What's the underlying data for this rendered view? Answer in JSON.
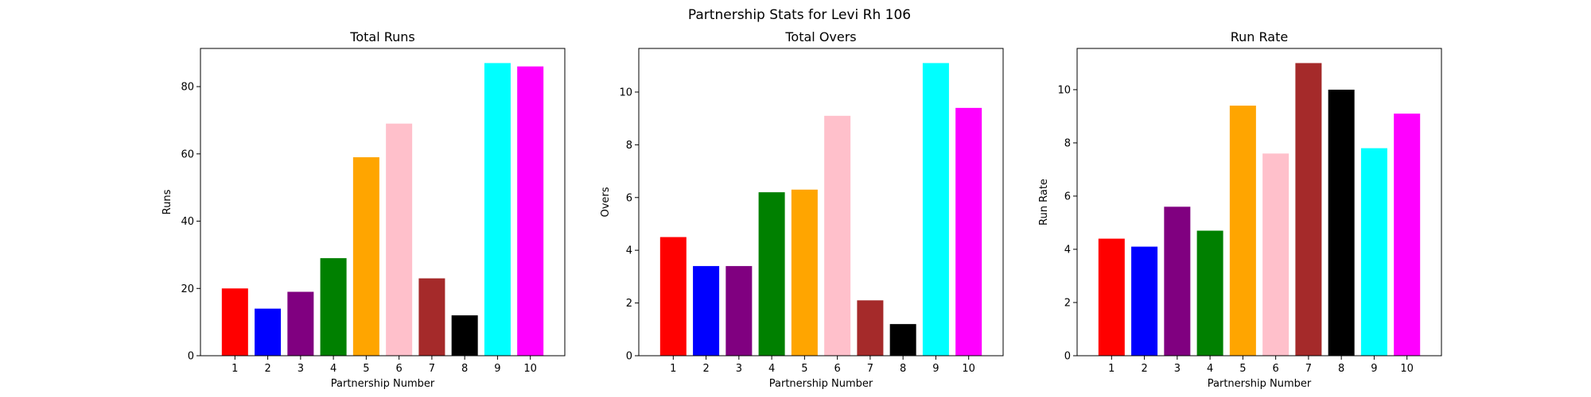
{
  "figure_title": "Partnership Stats for Levi Rh 106",
  "chart_data": [
    {
      "type": "bar",
      "title": "Total Runs",
      "xlabel": "Partnership Number",
      "ylabel": "Runs",
      "categories": [
        "1",
        "2",
        "3",
        "4",
        "5",
        "6",
        "7",
        "8",
        "9",
        "10"
      ],
      "values": [
        20,
        14,
        19,
        29,
        59,
        69,
        23,
        12,
        87,
        86
      ],
      "colors": [
        "#ff0000",
        "#0000ff",
        "#800080",
        "#008000",
        "#ffa500",
        "#ffc0cb",
        "#a52a2a",
        "#000000",
        "#00ffff",
        "#ff00ff"
      ],
      "ylim": [
        0,
        91.35
      ],
      "yticks": [
        0,
        20,
        40,
        60,
        80
      ],
      "grid": false
    },
    {
      "type": "bar",
      "title": "Total Overs",
      "xlabel": "Partnership Number",
      "ylabel": "Overs",
      "categories": [
        "1",
        "2",
        "3",
        "4",
        "5",
        "6",
        "7",
        "8",
        "9",
        "10"
      ],
      "values": [
        4.5,
        3.4,
        3.4,
        6.2,
        6.3,
        9.1,
        2.1,
        1.2,
        11.1,
        9.4
      ],
      "colors": [
        "#ff0000",
        "#0000ff",
        "#800080",
        "#008000",
        "#ffa500",
        "#ffc0cb",
        "#a52a2a",
        "#000000",
        "#00ffff",
        "#ff00ff"
      ],
      "ylim": [
        0,
        11.655
      ],
      "yticks": [
        0,
        2,
        4,
        6,
        8,
        10
      ],
      "grid": false
    },
    {
      "type": "bar",
      "title": "Run Rate",
      "xlabel": "Partnership Number",
      "ylabel": "Run Rate",
      "categories": [
        "1",
        "2",
        "3",
        "4",
        "5",
        "6",
        "7",
        "8",
        "9",
        "10"
      ],
      "values": [
        4.4,
        4.1,
        5.6,
        4.7,
        9.4,
        7.6,
        11.0,
        10.0,
        7.8,
        9.1
      ],
      "colors": [
        "#ff0000",
        "#0000ff",
        "#800080",
        "#008000",
        "#ffa500",
        "#ffc0cb",
        "#a52a2a",
        "#000000",
        "#00ffff",
        "#ff00ff"
      ],
      "ylim": [
        0,
        11.55
      ],
      "yticks": [
        0,
        2,
        4,
        6,
        8,
        10
      ],
      "grid": false
    }
  ]
}
